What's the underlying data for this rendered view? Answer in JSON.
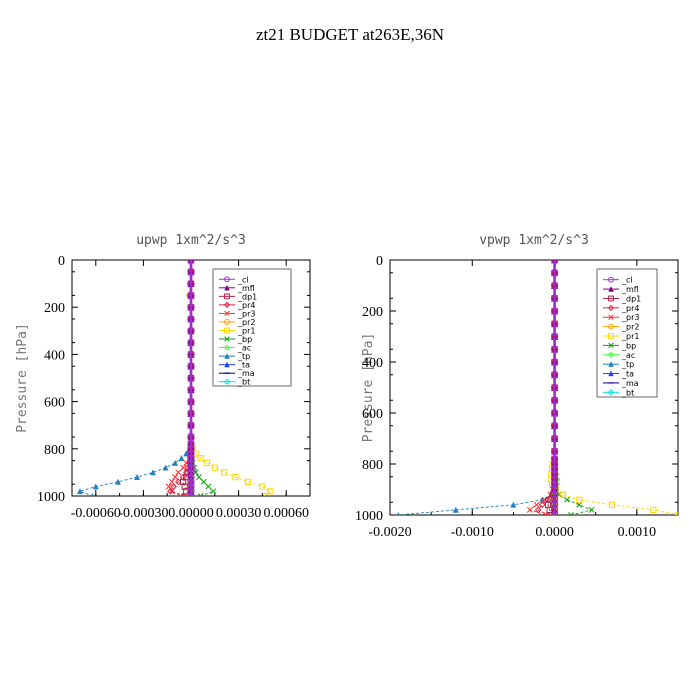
{
  "figure": {
    "title": "zt21  BUDGET at263E,36N"
  },
  "chart_data": [
    {
      "type": "line",
      "title": "upwp   1xm^2/s^3",
      "ylabel": "Pressure [hPa]",
      "xlabel": "",
      "xlim": [
        -0.00075,
        0.00075
      ],
      "ylim": [
        1000,
        0
      ],
      "y_reversed": true,
      "x_ticks": [
        -0.0006,
        -0.0003,
        0.0,
        0.0003,
        0.0006
      ],
      "x_tick_labels": [
        "-0.00060",
        "-0.00030",
        "0.00000",
        "0.00030",
        "0.00060"
      ],
      "y_ticks": [
        0,
        200,
        400,
        600,
        800,
        1000
      ],
      "y_tick_labels": [
        "0",
        "200",
        "400",
        "600",
        "800",
        "1000"
      ],
      "legend_position": "top-right",
      "y": [
        0,
        50,
        100,
        150,
        200,
        250,
        300,
        350,
        400,
        450,
        500,
        550,
        600,
        650,
        700,
        750,
        780,
        800,
        820,
        840,
        860,
        880,
        900,
        920,
        940,
        960,
        980,
        1000
      ],
      "series": [
        {
          "name": "_cl",
          "color": "#9b30d0",
          "values": [
            0,
            0,
            0,
            0,
            0,
            0,
            0,
            0,
            0,
            0,
            0,
            0,
            0,
            0,
            0,
            0,
            0,
            0,
            0,
            0,
            0,
            0,
            0,
            0,
            0,
            0,
            0,
            0
          ]
        },
        {
          "name": "_mfl",
          "color": "#800080",
          "values": [
            0,
            0,
            0,
            0,
            0,
            0,
            0,
            0,
            0,
            0,
            0,
            0,
            0,
            0,
            0,
            0,
            0,
            0,
            0,
            0,
            0,
            0,
            0,
            0,
            0,
            0,
            0,
            0
          ]
        },
        {
          "name": "_dp1",
          "color": "#b0204a",
          "values": [
            0,
            0,
            0,
            0,
            0,
            0,
            0,
            0,
            0,
            0,
            0,
            0,
            0,
            0,
            0,
            0,
            0,
            0,
            0,
            0,
            0,
            0,
            -2e-05,
            -3e-05,
            -5e-05,
            -4e-05,
            -3e-05,
            0
          ]
        },
        {
          "name": "_pr4",
          "color": "#e02040",
          "values": [
            0,
            0,
            0,
            0,
            0,
            0,
            0,
            0,
            0,
            0,
            0,
            0,
            0,
            0,
            0,
            0,
            0,
            0,
            0,
            0,
            -1e-05,
            -2e-05,
            -3e-05,
            -5e-05,
            -8e-05,
            -0.00011,
            -0.00013,
            -5e-05
          ]
        },
        {
          "name": "_pr3",
          "color": "#ff3030",
          "values": [
            0,
            0,
            0,
            0,
            0,
            0,
            0,
            0,
            0,
            0,
            0,
            0,
            0,
            0,
            0,
            0,
            0,
            0,
            0,
            -1e-05,
            -3e-05,
            -5e-05,
            -8e-05,
            -0.0001,
            -0.00012,
            -0.00014,
            -0.00012,
            -4e-05
          ]
        },
        {
          "name": "_pr2",
          "color": "#ffa000",
          "values": [
            0,
            0,
            -5e-06,
            -1e-05,
            0,
            0,
            0,
            0,
            0,
            0,
            0,
            0,
            0,
            0,
            0,
            0,
            0,
            0,
            0,
            0,
            0,
            0,
            0,
            0,
            0,
            0,
            0,
            0
          ]
        },
        {
          "name": "_pr1",
          "color": "#ffd700",
          "values": [
            0,
            0,
            0,
            0,
            0,
            0,
            0,
            0,
            0,
            0,
            0,
            0,
            0,
            0,
            0,
            0,
            0,
            1e-05,
            3e-05,
            6e-05,
            0.0001,
            0.00015,
            0.00021,
            0.00028,
            0.00036,
            0.00045,
            0.0005,
            0.00048
          ]
        },
        {
          "name": "_bp",
          "color": "#10a010",
          "values": [
            0,
            0,
            0,
            0,
            0,
            0,
            0,
            0,
            0,
            0,
            0,
            0,
            0,
            0,
            0,
            0,
            0,
            0,
            0,
            0,
            1e-05,
            2e-05,
            3e-05,
            5e-05,
            8e-05,
            0.00011,
            0.00014,
            6e-05
          ]
        },
        {
          "name": "_ac",
          "color": "#40ff40",
          "values": [
            0,
            0,
            0,
            0,
            0,
            0,
            0,
            0,
            0,
            0,
            0,
            0,
            0,
            0,
            0,
            0,
            0,
            0,
            0,
            0,
            0,
            0,
            0,
            0,
            0,
            0,
            0,
            0
          ]
        },
        {
          "name": "_tp",
          "color": "#2080c0",
          "values": [
            0,
            0,
            0,
            0,
            0,
            0,
            0,
            0,
            0,
            0,
            0,
            0,
            0,
            0,
            0,
            0,
            0,
            -1e-05,
            -3e-05,
            -6e-05,
            -0.0001,
            -0.00016,
            -0.00024,
            -0.00034,
            -0.00046,
            -0.0006,
            -0.0007,
            -0.00062
          ]
        },
        {
          "name": "_ta",
          "color": "#2040ff",
          "values": [
            0,
            0,
            0,
            0,
            0,
            0,
            0,
            0,
            0,
            0,
            0,
            0,
            0,
            0,
            0,
            0,
            0,
            0,
            0,
            0,
            0,
            0,
            0,
            0,
            0,
            0,
            0,
            0
          ]
        },
        {
          "name": "_ma",
          "color": "#000080",
          "values": [
            0,
            0,
            0,
            0,
            0,
            0,
            0,
            0,
            0,
            0,
            0,
            0,
            0,
            0,
            0,
            0,
            0,
            0,
            0,
            0,
            0,
            0,
            0,
            0,
            0,
            0,
            0,
            0
          ]
        },
        {
          "name": "_bt",
          "color": "#00e0e0",
          "values": [
            0,
            0,
            0,
            0,
            0,
            0,
            0,
            0,
            0,
            0,
            0,
            0,
            0,
            0,
            0,
            0,
            0,
            0,
            0,
            0,
            0,
            0,
            0,
            0,
            0,
            0,
            0,
            0
          ]
        }
      ]
    },
    {
      "type": "line",
      "title": "vpwp   1xm^2/s^3",
      "ylabel": "Pressure [hPa]",
      "xlabel": "",
      "xlim": [
        -0.002,
        0.0015
      ],
      "ylim": [
        1000,
        0
      ],
      "y_reversed": true,
      "x_ticks": [
        -0.002,
        -0.001,
        0.0,
        0.001
      ],
      "x_tick_labels": [
        "-0.0020",
        "-0.0010",
        "0.0000",
        "0.0010"
      ],
      "y_ticks": [
        0,
        200,
        400,
        600,
        800,
        1000
      ],
      "y_tick_labels": [
        "0",
        "200",
        "400",
        "600",
        "800",
        "1000"
      ],
      "legend_position": "top-right",
      "y": [
        0,
        50,
        100,
        150,
        200,
        250,
        300,
        350,
        400,
        450,
        500,
        550,
        600,
        650,
        700,
        750,
        780,
        800,
        820,
        840,
        860,
        880,
        900,
        920,
        940,
        960,
        980,
        1000
      ],
      "series": [
        {
          "name": "_cl",
          "color": "#9b30d0",
          "values": [
            0,
            0,
            0,
            0,
            0,
            0,
            0,
            0,
            0,
            0,
            0,
            0,
            0,
            0,
            0,
            0,
            0,
            0,
            0,
            0,
            0,
            0,
            0,
            0,
            0,
            0,
            0,
            0
          ]
        },
        {
          "name": "_mfl",
          "color": "#800080",
          "values": [
            0,
            0,
            0,
            0,
            0,
            0,
            0,
            0,
            0,
            0,
            0,
            0,
            0,
            0,
            0,
            0,
            0,
            0,
            0,
            0,
            0,
            0,
            0,
            0,
            0,
            0,
            0,
            0
          ]
        },
        {
          "name": "_dp1",
          "color": "#b0204a",
          "values": [
            0,
            0,
            0,
            0,
            0,
            0,
            0,
            0,
            0,
            0,
            0,
            0,
            0,
            0,
            0,
            0,
            0,
            0,
            0,
            0,
            0,
            0,
            0,
            -2e-05,
            -5e-05,
            -8e-05,
            -6e-05,
            0
          ]
        },
        {
          "name": "_pr4",
          "color": "#e02040",
          "values": [
            0,
            0,
            0,
            0,
            0,
            0,
            0,
            0,
            0,
            0,
            0,
            0,
            0,
            0,
            0,
            0,
            0,
            0,
            0,
            0,
            0,
            0,
            -1e-05,
            -3e-05,
            -8e-05,
            -0.00015,
            -0.0002,
            -8e-05
          ]
        },
        {
          "name": "_pr3",
          "color": "#ff3030",
          "values": [
            0,
            0,
            0,
            0,
            0,
            0,
            0,
            0,
            0,
            0,
            0,
            0,
            0,
            0,
            0,
            0,
            0,
            0,
            0,
            0,
            0,
            0,
            -2e-05,
            -5e-05,
            -0.00012,
            -0.00022,
            -0.0003,
            -0.0001
          ]
        },
        {
          "name": "_pr2",
          "color": "#ffa000",
          "values": [
            0,
            0,
            0,
            0,
            0,
            0,
            0,
            0,
            0,
            0,
            0,
            0,
            0,
            0,
            0,
            0,
            0,
            0,
            0,
            0,
            0,
            0,
            0,
            0,
            0,
            0,
            0,
            0
          ]
        },
        {
          "name": "_pr1",
          "color": "#ffd700",
          "values": [
            0,
            0,
            0,
            0,
            0,
            0,
            0,
            0,
            0,
            0,
            0,
            0,
            0,
            0,
            0,
            0,
            0,
            -2e-05,
            -3e-05,
            -4e-05,
            -4e-05,
            -3e-05,
            1e-05,
            0.0001,
            0.0003,
            0.0007,
            0.0012,
            0.0015
          ]
        },
        {
          "name": "_bp",
          "color": "#10a010",
          "values": [
            0,
            0,
            0,
            0,
            0,
            0,
            0,
            0,
            0,
            0,
            0,
            0,
            0,
            0,
            0,
            0,
            0,
            0,
            0,
            0,
            0,
            0,
            2e-05,
            6e-05,
            0.00015,
            0.0003,
            0.00045,
            0.0002
          ]
        },
        {
          "name": "_ac",
          "color": "#40ff40",
          "values": [
            0,
            0,
            0,
            0,
            0,
            0,
            0,
            0,
            0,
            0,
            0,
            0,
            0,
            0,
            0,
            0,
            0,
            0,
            1e-05,
            2e-05,
            3e-05,
            3e-05,
            2e-05,
            1e-05,
            0,
            0,
            0,
            0
          ]
        },
        {
          "name": "_tp",
          "color": "#2080c0",
          "values": [
            0,
            0,
            0,
            0,
            0,
            0,
            0,
            0,
            0,
            0,
            0,
            0,
            0,
            0,
            0,
            0,
            0,
            0,
            0,
            0,
            0,
            0,
            0,
            -4e-05,
            -0.00015,
            -0.0005,
            -0.0012,
            -0.0019
          ]
        },
        {
          "name": "_ta",
          "color": "#2040ff",
          "values": [
            0,
            0,
            0,
            0,
            0,
            0,
            0,
            0,
            0,
            0,
            0,
            0,
            0,
            0,
            0,
            0,
            0,
            0,
            0,
            0,
            0,
            0,
            0,
            0,
            0,
            0,
            0,
            0
          ]
        },
        {
          "name": "_ma",
          "color": "#000080",
          "values": [
            0,
            0,
            0,
            0,
            0,
            0,
            0,
            0,
            0,
            0,
            0,
            0,
            0,
            0,
            0,
            0,
            0,
            0,
            0,
            0,
            0,
            0,
            0,
            0,
            0,
            0,
            0,
            0
          ]
        },
        {
          "name": "_bt",
          "color": "#00e0e0",
          "values": [
            0,
            0,
            0,
            0,
            0,
            0,
            0,
            0,
            0,
            0,
            0,
            0,
            0,
            0,
            0,
            0,
            0,
            0,
            0,
            0,
            0,
            0,
            0,
            0,
            0,
            0,
            0,
            0
          ]
        }
      ]
    }
  ]
}
